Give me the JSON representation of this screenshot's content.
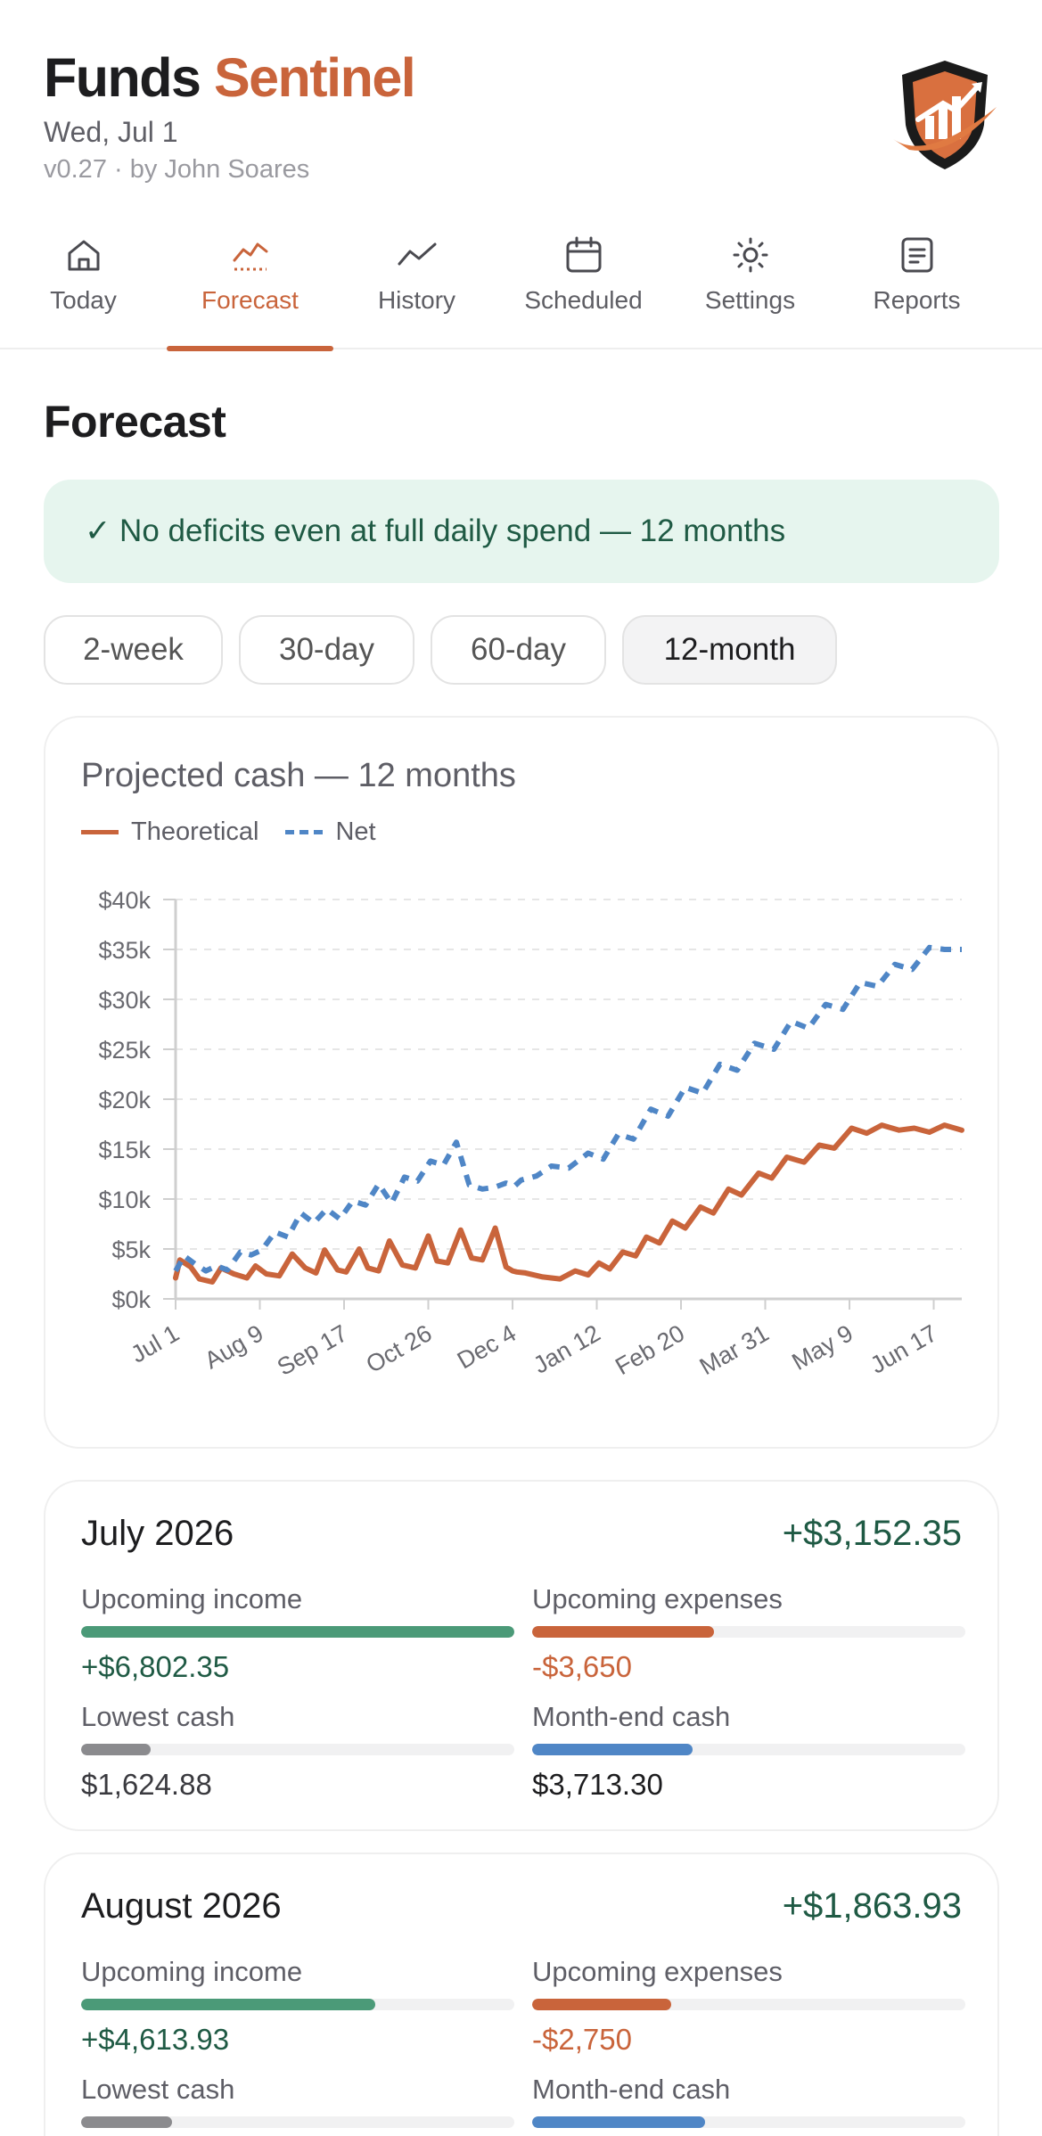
{
  "app": {
    "brand_first": "Funds",
    "brand_second": "Sentinel",
    "date": "Wed, Jul 1",
    "version": "v0.27 · by John Soares",
    "logo_icon": "shield-chart-logo",
    "accent": "#c9643b"
  },
  "tabs": [
    {
      "label": "Today",
      "icon": "home-icon"
    },
    {
      "label": "Forecast",
      "icon": "trend-chart-icon",
      "active": true
    },
    {
      "label": "History",
      "icon": "line-chart-icon"
    },
    {
      "label": "Scheduled",
      "icon": "calendar-icon"
    },
    {
      "label": "Settings",
      "icon": "gear-icon"
    },
    {
      "label": "Reports",
      "icon": "document-icon"
    }
  ],
  "page_title": "Forecast",
  "banner": "✓ No deficits even at full daily spend — 12 months",
  "ranges": [
    {
      "label": "2-week"
    },
    {
      "label": "30-day"
    },
    {
      "label": "60-day"
    },
    {
      "label": "12-month",
      "selected": true
    }
  ],
  "chart": {
    "title": "Projected cash — 12 months",
    "legend": [
      "Theoretical",
      "Net"
    ]
  },
  "chart_data": {
    "type": "line",
    "title": "Projected cash — 12 months",
    "ylim": [
      0,
      40000
    ],
    "y_ticks": [
      "$0k",
      "$5k",
      "$10k",
      "$15k",
      "$20k",
      "$25k",
      "$30k",
      "$35k",
      "$40k"
    ],
    "x_ticks": [
      "Jul 1",
      "Aug 9",
      "Sep 17",
      "Oct 26",
      "Dec 4",
      "Jan 12",
      "Feb 20",
      "Mar 31",
      "May 9",
      "Jun 17"
    ],
    "grid": true,
    "legend_position": "top-left",
    "series": [
      {
        "name": "Theoretical",
        "color": "#c9643b",
        "style": "solid",
        "x": [
          "2026-07-01",
          "2026-07-03",
          "2026-07-08",
          "2026-07-12",
          "2026-07-18",
          "2026-07-22",
          "2026-07-28",
          "2026-08-03",
          "2026-08-07",
          "2026-08-12",
          "2026-08-18",
          "2026-08-24",
          "2026-08-30",
          "2026-09-04",
          "2026-09-08",
          "2026-09-14",
          "2026-09-18",
          "2026-09-24",
          "2026-09-28",
          "2026-10-03",
          "2026-10-08",
          "2026-10-14",
          "2026-10-20",
          "2026-10-26",
          "2026-10-30",
          "2026-11-04",
          "2026-11-10",
          "2026-11-15",
          "2026-11-20",
          "2026-11-26",
          "2026-12-01",
          "2026-12-04",
          "2026-12-06",
          "2026-12-10",
          "2026-12-18",
          "2026-12-26",
          "2027-01-02",
          "2027-01-08",
          "2027-01-13",
          "2027-01-18",
          "2027-01-24",
          "2027-01-30",
          "2027-02-04",
          "2027-02-10",
          "2027-02-16",
          "2027-02-22",
          "2027-03-01",
          "2027-03-07",
          "2027-03-14",
          "2027-03-20",
          "2027-03-28",
          "2027-04-03",
          "2027-04-10",
          "2027-04-18",
          "2027-04-25",
          "2027-05-02",
          "2027-05-10",
          "2027-05-17",
          "2027-05-24",
          "2027-06-01",
          "2027-06-08",
          "2027-06-15",
          "2027-06-22",
          "2027-06-30"
        ],
        "y": [
          2100,
          3900,
          3200,
          2000,
          1700,
          3100,
          2500,
          2100,
          3300,
          2500,
          2300,
          4500,
          3100,
          2600,
          4900,
          2900,
          2700,
          5000,
          3100,
          2800,
          5800,
          3400,
          3100,
          6300,
          3800,
          3600,
          6900,
          4100,
          3900,
          7100,
          3200,
          2800,
          2700,
          2600,
          2200,
          2000,
          2800,
          2400,
          3600,
          3000,
          4700,
          4300,
          6200,
          5600,
          7800,
          7100,
          9200,
          8600,
          11000,
          10400,
          12600,
          12100,
          14200,
          13700,
          15400,
          15100,
          17100,
          16600,
          17400,
          16900,
          17100,
          16700,
          17400,
          16900
        ]
      },
      {
        "name": "Net",
        "color": "#4f86c6",
        "style": "dashed",
        "x": [
          "2026-07-01",
          "2026-07-05",
          "2026-07-10",
          "2026-07-15",
          "2026-07-20",
          "2026-07-25",
          "2026-07-31",
          "2026-08-05",
          "2026-08-10",
          "2026-08-16",
          "2026-08-22",
          "2026-08-28",
          "2026-09-03",
          "2026-09-09",
          "2026-09-15",
          "2026-09-21",
          "2026-09-27",
          "2026-10-03",
          "2026-10-09",
          "2026-10-15",
          "2026-10-21",
          "2026-10-27",
          "2026-11-02",
          "2026-11-08",
          "2026-11-14",
          "2026-11-20",
          "2026-11-26",
          "2026-12-01",
          "2026-12-05",
          "2026-12-08",
          "2026-12-15",
          "2026-12-22",
          "2026-12-30",
          "2027-01-08",
          "2027-01-15",
          "2027-01-22",
          "2027-01-29",
          "2027-02-06",
          "2027-02-14",
          "2027-02-22",
          "2027-03-02",
          "2027-03-10",
          "2027-03-18",
          "2027-03-26",
          "2027-04-04",
          "2027-04-12",
          "2027-04-20",
          "2027-04-28",
          "2027-05-06",
          "2027-05-14",
          "2027-05-22",
          "2027-05-30",
          "2027-06-07",
          "2027-06-15",
          "2027-06-22",
          "2027-06-30"
        ],
        "y": [
          2800,
          4300,
          3500,
          2800,
          3300,
          2900,
          4700,
          4400,
          4900,
          6700,
          6200,
          8600,
          7600,
          9000,
          8000,
          9800,
          9400,
          11500,
          9600,
          12200,
          11800,
          13800,
          13400,
          15700,
          11400,
          11000,
          11200,
          11600,
          11300,
          11900,
          12300,
          13300,
          13100,
          14600,
          14000,
          16500,
          16000,
          19000,
          18300,
          21200,
          20600,
          23500,
          22900,
          25600,
          25000,
          27800,
          27100,
          29500,
          29000,
          31700,
          31300,
          33500,
          33000,
          35200,
          35000,
          35000
        ]
      }
    ]
  },
  "months": [
    {
      "title": "July 2026",
      "net": "+$3,152.35",
      "income_label": "Upcoming income",
      "income_value": "+$6,802.35",
      "income_fraction": 1.0,
      "expense_label": "Upcoming expenses",
      "expense_value": "-$3,650",
      "expense_fraction": 0.42,
      "lowest_label": "Lowest cash",
      "lowest_value": "$1,624.88",
      "lowest_fraction": 0.16,
      "end_label": "Month-end cash",
      "end_value": "$3,713.30",
      "end_fraction": 0.37
    },
    {
      "title": "August 2026",
      "net": "+$1,863.93",
      "income_label": "Upcoming income",
      "income_value": "+$4,613.93",
      "income_fraction": 0.68,
      "expense_label": "Upcoming expenses",
      "expense_value": "-$2,750",
      "expense_fraction": 0.32,
      "lowest_label": "Lowest cash",
      "lowest_value": "",
      "lowest_fraction": 0.21,
      "end_label": "Month-end cash",
      "end_value": "",
      "end_fraction": 0.4
    }
  ],
  "colors": {
    "income": "#4b9a78",
    "expense": "#c9643b",
    "lowest": "#8b8b8e",
    "end": "#4f86c6",
    "positive_text": "#1f5a44"
  }
}
